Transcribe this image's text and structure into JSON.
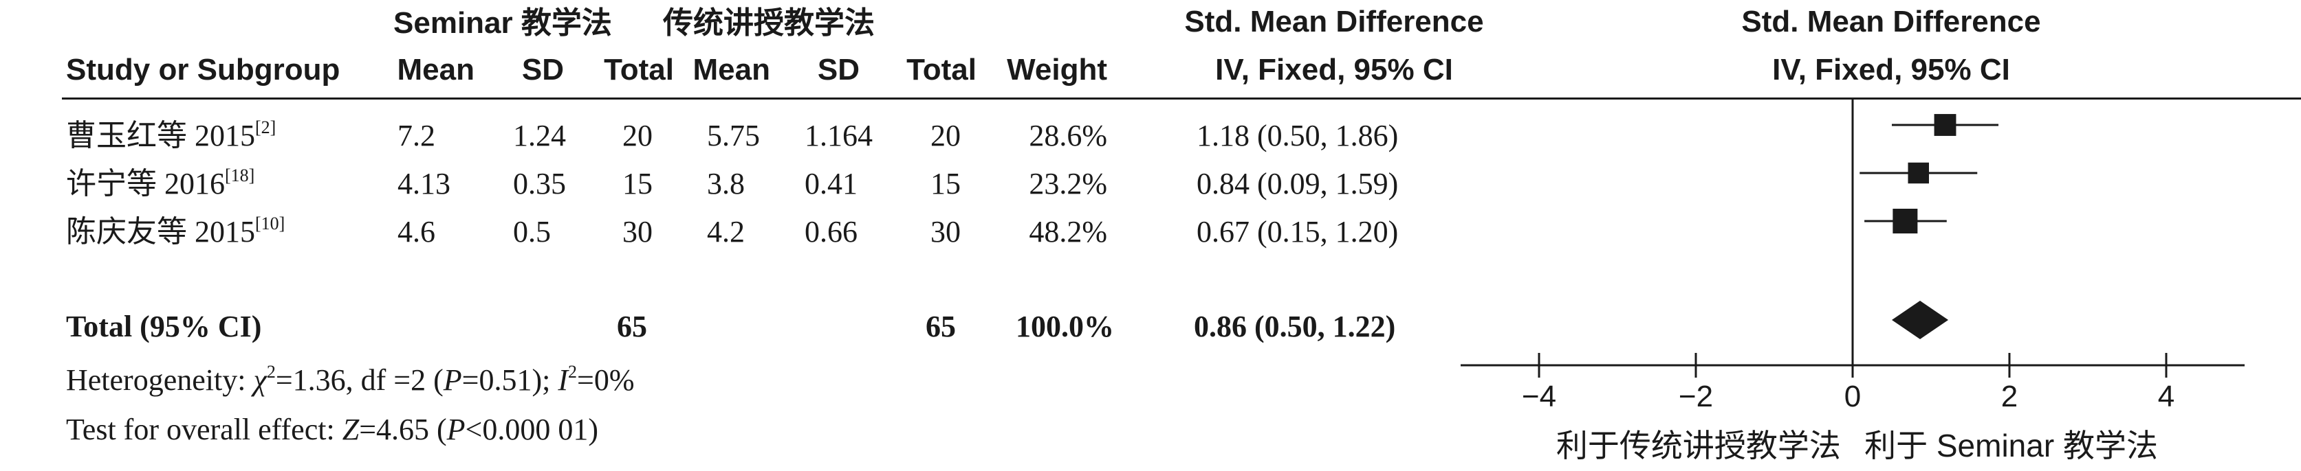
{
  "header": {
    "group1_name": "Seminar 教学法",
    "group2_name": "传统讲授教学法",
    "smd_title_table": "Std. Mean Difference",
    "smd_method_table": "IV, Fixed, 95% CI",
    "smd_title_plot": "Std. Mean Difference",
    "smd_method_plot": "IV, Fixed, 95% CI",
    "col_study": "Study or Subgroup",
    "col_mean1": "Mean",
    "col_sd1": "SD",
    "col_total1": "Total",
    "col_mean2": "Mean",
    "col_sd2": "SD",
    "col_total2": "Total",
    "col_weight": "Weight"
  },
  "studies": [
    {
      "name": "曹玉红等 2015",
      "ref": "[2]",
      "mean1": "7.2",
      "sd1": "1.24",
      "total1": "20",
      "mean2": "5.75",
      "sd2": "1.164",
      "total2": "20",
      "weight": "28.6%",
      "ci_text": "1.18 (0.50, 1.86)"
    },
    {
      "name": "许宁等 2016",
      "ref": "[18]",
      "mean1": "4.13",
      "sd1": "0.35",
      "total1": "15",
      "mean2": "3.8",
      "sd2": "0.41",
      "total2": "15",
      "weight": "23.2%",
      "ci_text": "0.84 (0.09, 1.59)"
    },
    {
      "name": "陈庆友等 2015",
      "ref": "[10]",
      "mean1": "4.6",
      "sd1": "0.5",
      "total1": "30",
      "mean2": "4.2",
      "sd2": "0.66",
      "total2": "30",
      "weight": "48.2%",
      "ci_text": "0.67 (0.15, 1.20)"
    }
  ],
  "total": {
    "label": "Total (95% CI)",
    "total1": "65",
    "total2": "65",
    "weight": "100.0%",
    "ci_text": "0.86 (0.50, 1.22)"
  },
  "heterogeneity": {
    "prefix": "Heterogeneity: ",
    "chi_symbol": "χ",
    "chi_sup": "2",
    "chi_value": "=1.36, df =2 (",
    "p_symbol": "P",
    "p_value": "=0.51); ",
    "i_symbol": "I",
    "i_sup": "2",
    "i_value": "=0%"
  },
  "overall": {
    "prefix": "Test for overall effect: ",
    "z_symbol": "Z",
    "z_value": "=4.65 (",
    "p_symbol": "P",
    "p_value": "<0.000 01)"
  },
  "chart_data": {
    "type": "forest",
    "measure": "Std. Mean Difference",
    "method": "IV, Fixed, 95% CI",
    "xlim": [
      -5,
      5
    ],
    "ticks": [
      -4,
      -2,
      0,
      2,
      4
    ],
    "tick_labels": [
      "−4",
      "−2",
      "0",
      "2",
      "4"
    ],
    "reference_line": 0,
    "studies": [
      {
        "name": "曹玉红等 2015",
        "smd": 1.18,
        "ci_low": 0.5,
        "ci_high": 1.86,
        "weight": 28.6
      },
      {
        "name": "许宁等 2016",
        "smd": 0.84,
        "ci_low": 0.09,
        "ci_high": 1.59,
        "weight": 23.2
      },
      {
        "name": "陈庆友等 2015",
        "smd": 0.67,
        "ci_low": 0.15,
        "ci_high": 1.2,
        "weight": 48.2
      }
    ],
    "total": {
      "smd": 0.86,
      "ci_low": 0.5,
      "ci_high": 1.22
    },
    "favours_left": "利于传统讲授教学法",
    "favours_right": "利于 Seminar 教学法"
  }
}
